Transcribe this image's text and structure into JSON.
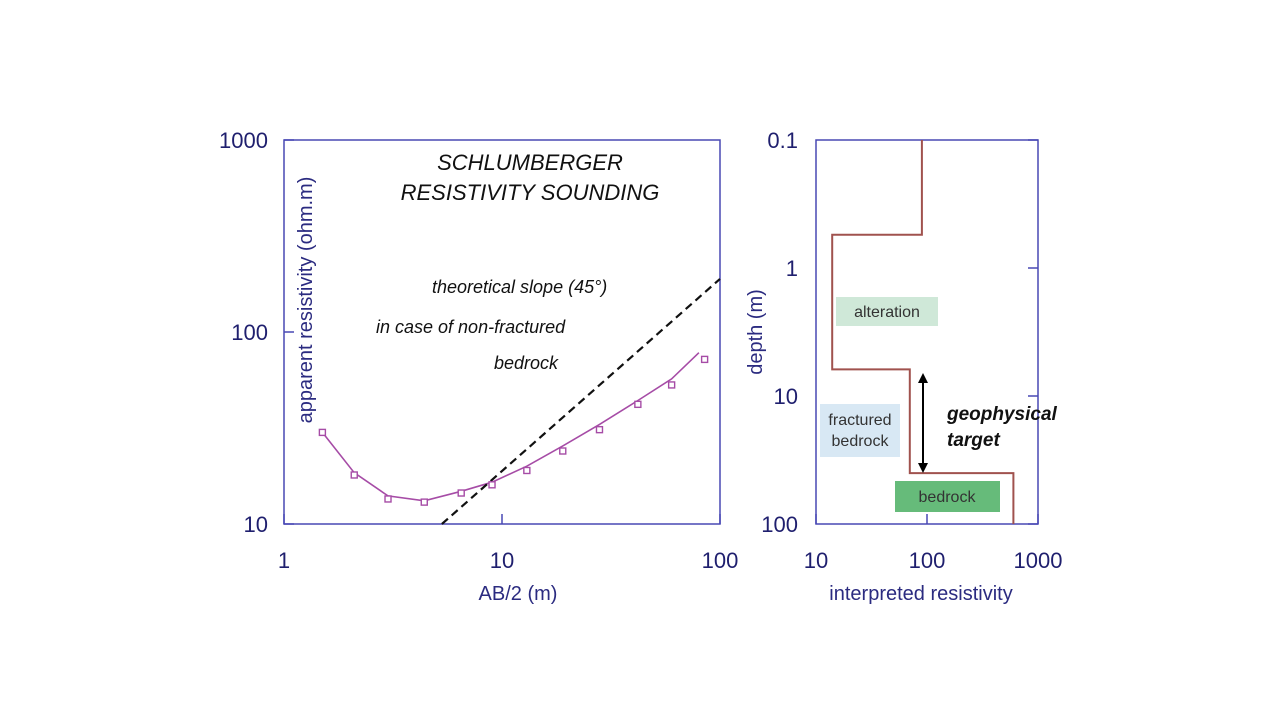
{
  "chart_data": [
    {
      "type": "line",
      "title": "SCHLUMBERGER RESISTIVITY SOUNDING",
      "xlabel": "AB/2 (m)",
      "ylabel": "apparent resistivity (ohm.m)",
      "xscale": "log",
      "yscale": "log",
      "xlim": [
        1,
        100
      ],
      "ylim": [
        10,
        1000
      ],
      "x_ticks": [
        "1",
        "10",
        "100"
      ],
      "y_ticks": [
        "10",
        "100",
        "1000"
      ],
      "grid": false,
      "series": [
        {
          "kind": "measured",
          "color": "#a64ca6",
          "x": [
            1.5,
            2.1,
            3.0,
            4.4,
            6.5,
            9.0,
            13.0,
            19.0,
            28.0,
            42.0,
            60.0,
            85.0
          ],
          "y": [
            30,
            18,
            13.5,
            13,
            14.5,
            16,
            19,
            24,
            31,
            42,
            53,
            72
          ]
        },
        {
          "kind": "fitted",
          "color": "#a64ca6",
          "x": [
            1.5,
            2.1,
            3.0,
            4.4,
            6.5,
            9.0,
            13.0,
            19.0,
            28.0,
            42.0,
            60.0,
            80.0
          ],
          "y": [
            30,
            18.5,
            14,
            13.2,
            14.8,
            16.5,
            20,
            25.5,
            33,
            44,
            57,
            78
          ]
        },
        {
          "kind": "theoretical-slope",
          "color": "#111111",
          "x": [
            5.3,
            100
          ],
          "y": [
            10,
            189
          ]
        }
      ],
      "annotations": {
        "slope_line1": "theoretical  slope (45°)",
        "slope_line2": "in case of non-fractured",
        "slope_line3": "bedrock"
      }
    },
    {
      "type": "line",
      "xlabel": "interpreted resistivity",
      "ylabel": "depth (m)",
      "xscale": "log",
      "yscale": "log",
      "y_inverted": true,
      "xlim": [
        10,
        1000
      ],
      "ylim": [
        0.1,
        100
      ],
      "x_ticks": [
        "10",
        "100",
        "1000"
      ],
      "y_ticks": [
        "0.1",
        "1",
        "10",
        "100"
      ],
      "grid": false,
      "series": [
        {
          "kind": "layered-model",
          "color": "#a0524e",
          "resistivity": [
            90,
            90,
            14,
            14,
            70,
            70,
            600,
            600
          ],
          "depth": [
            0.1,
            0.55,
            0.55,
            6.2,
            6.2,
            40,
            40,
            100
          ]
        }
      ],
      "layers": [
        {
          "label": "alteration",
          "color": "#cfe8d8"
        },
        {
          "label_line1": "fractured",
          "label_line2": "bedrock",
          "color": "#d8e8f4"
        },
        {
          "label": "bedrock",
          "color": "#66bb7a"
        }
      ],
      "target": {
        "line1": "geophysical",
        "line2": "target",
        "depth_range": [
          6.2,
          40
        ]
      }
    }
  ]
}
